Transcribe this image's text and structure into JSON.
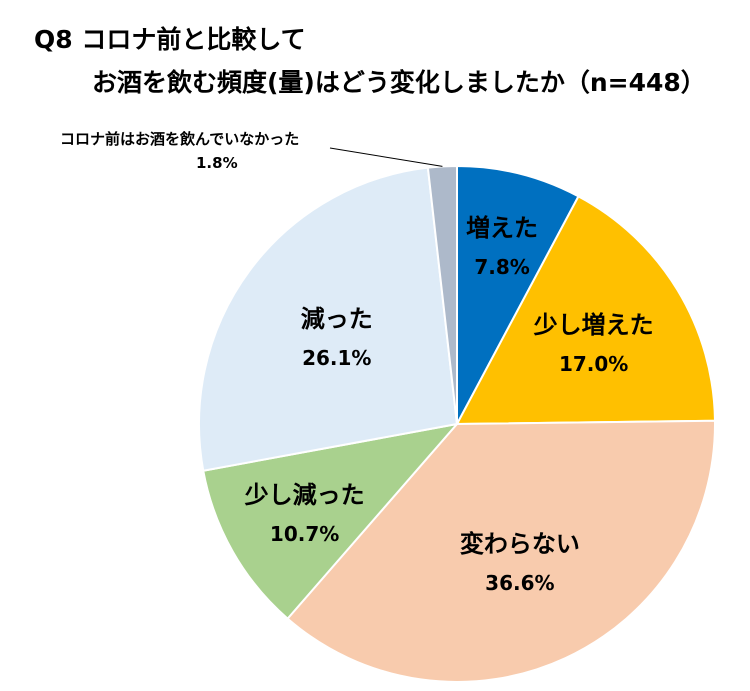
{
  "chart_data": {
    "type": "pie",
    "title": "Q8 コロナ前と比較して",
    "subtitle": "お酒を飲む頻度(量)はどう変化しましたか（n=448）",
    "start_angle_deg": 0,
    "direction": "clockwise",
    "slices": [
      {
        "label": "増えた",
        "value": 7.8,
        "value_label": "7.8%",
        "color": "#0070C0"
      },
      {
        "label": "少し増えた",
        "value": 17.0,
        "value_label": "17.0%",
        "color": "#FFC000"
      },
      {
        "label": "変わらない",
        "value": 36.6,
        "value_label": "36.6%",
        "color": "#F8CBAD"
      },
      {
        "label": "少し減った",
        "value": 10.7,
        "value_label": "10.7%",
        "color": "#A9D18E"
      },
      {
        "label": "減った",
        "value": 26.1,
        "value_label": "26.1%",
        "color": "#DEEBF7"
      },
      {
        "label": "コロナ前はお酒を飲んでいなかった",
        "value": 1.8,
        "value_label": "1.8%",
        "color": "#ADB9CA"
      }
    ]
  }
}
